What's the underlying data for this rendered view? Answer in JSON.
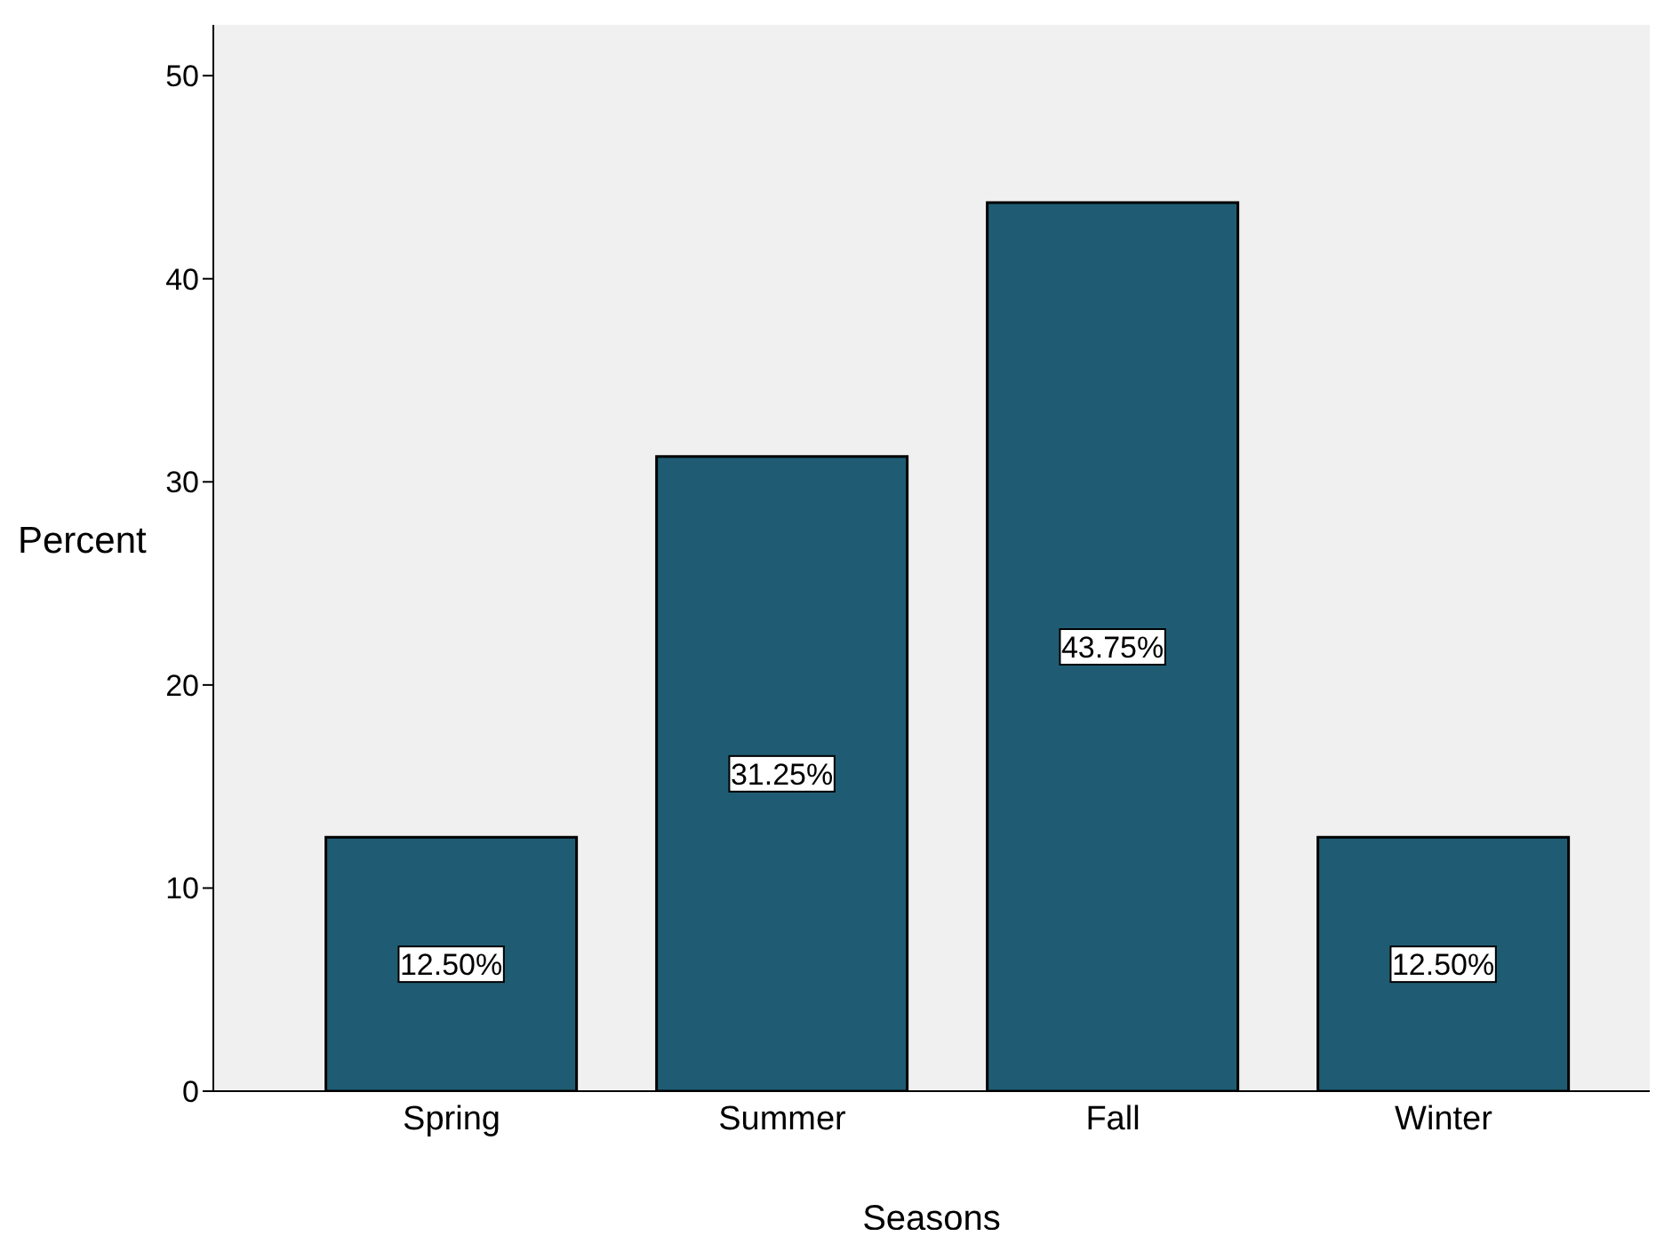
{
  "chart_data": {
    "type": "bar",
    "xlabel": "Seasons",
    "ylabel": "Percent",
    "categories": [
      "Spring",
      "Summer",
      "Fall",
      "Winter"
    ],
    "values": [
      12.5,
      31.25,
      43.75,
      12.5
    ],
    "value_labels": [
      "12.50%",
      "31.25%",
      "43.75%",
      "12.50%"
    ],
    "color": "#1f5c73",
    "ylim": [
      0,
      52.5
    ],
    "yticks": [
      0,
      10,
      20,
      30,
      40,
      50
    ]
  }
}
